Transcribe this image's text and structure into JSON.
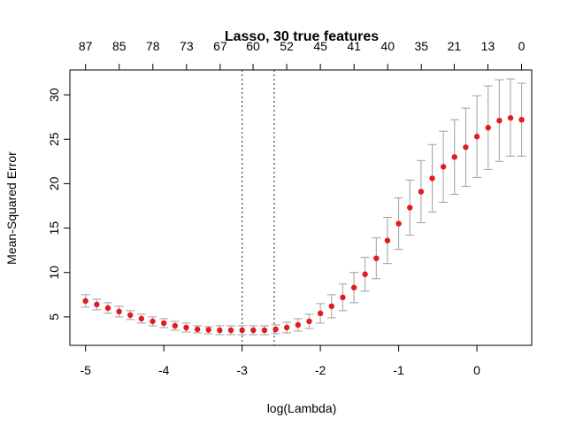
{
  "chart_data": {
    "type": "scatter",
    "title": "Lasso, 30 true features",
    "xlabel": "log(Lambda)",
    "ylabel": "Mean-Squared Error",
    "xlim": [
      -5.2,
      0.7
    ],
    "ylim": [
      1.8,
      32.8
    ],
    "x_ticks": [
      -5,
      -4,
      -3,
      -2,
      -1,
      0
    ],
    "y_ticks": [
      5,
      10,
      15,
      20,
      25,
      30
    ],
    "top_ticks": [
      {
        "x": -5.0,
        "label": "87"
      },
      {
        "x": -4.57,
        "label": "85"
      },
      {
        "x": -4.14,
        "label": "78"
      },
      {
        "x": -3.71,
        "label": "73"
      },
      {
        "x": -3.28,
        "label": "67"
      },
      {
        "x": -2.86,
        "label": "60"
      },
      {
        "x": -2.43,
        "label": "52"
      },
      {
        "x": -2.0,
        "label": "45"
      },
      {
        "x": -1.57,
        "label": "41"
      },
      {
        "x": -1.14,
        "label": "40"
      },
      {
        "x": -0.71,
        "label": "35"
      },
      {
        "x": -0.29,
        "label": "21"
      },
      {
        "x": 0.14,
        "label": "13"
      },
      {
        "x": 0.57,
        "label": "0"
      }
    ],
    "vlines": [
      -3.0,
      -2.59
    ],
    "grid": false,
    "colors": {
      "points": "#e41a1c",
      "errorbars": "#a0a0a0",
      "axes": "#000000",
      "vlines": "#555555"
    },
    "x": [
      -5.0,
      -4.857,
      -4.714,
      -4.571,
      -4.429,
      -4.286,
      -4.143,
      -4.0,
      -3.857,
      -3.714,
      -3.571,
      -3.429,
      -3.286,
      -3.143,
      -3.0,
      -2.857,
      -2.714,
      -2.571,
      -2.429,
      -2.286,
      -2.143,
      -2.0,
      -1.857,
      -1.714,
      -1.571,
      -1.429,
      -1.286,
      -1.143,
      -1.0,
      -0.857,
      -0.714,
      -0.571,
      -0.429,
      -0.286,
      -0.143,
      0.0,
      0.143,
      0.286,
      0.429,
      0.571
    ],
    "mse": [
      6.8,
      6.4,
      6.0,
      5.6,
      5.2,
      4.8,
      4.5,
      4.3,
      4.0,
      3.8,
      3.6,
      3.55,
      3.5,
      3.5,
      3.5,
      3.5,
      3.5,
      3.6,
      3.8,
      4.1,
      4.5,
      5.4,
      6.2,
      7.2,
      8.3,
      9.8,
      11.6,
      13.6,
      15.5,
      17.3,
      19.1,
      20.6,
      21.9,
      23.0,
      24.1,
      25.3,
      26.3,
      27.1,
      27.4,
      27.2
    ],
    "lower": [
      6.1,
      5.8,
      5.4,
      5.0,
      4.7,
      4.3,
      4.0,
      3.8,
      3.5,
      3.3,
      3.2,
      3.1,
      3.0,
      3.0,
      3.0,
      3.0,
      3.0,
      3.1,
      3.2,
      3.4,
      3.7,
      4.3,
      4.9,
      5.7,
      6.6,
      7.9,
      9.3,
      11.0,
      12.6,
      14.2,
      15.6,
      16.8,
      17.9,
      18.8,
      19.7,
      20.7,
      21.6,
      22.5,
      23.1,
      23.1
    ],
    "upper": [
      7.5,
      7.0,
      6.6,
      6.2,
      5.7,
      5.3,
      5.0,
      4.8,
      4.5,
      4.3,
      4.0,
      3.9,
      4.0,
      4.0,
      4.0,
      4.0,
      4.0,
      4.1,
      4.4,
      4.8,
      5.3,
      6.5,
      7.5,
      8.7,
      10.0,
      11.7,
      13.9,
      16.2,
      18.4,
      20.4,
      22.6,
      24.4,
      25.9,
      27.2,
      28.5,
      29.9,
      31.0,
      31.7,
      31.8,
      31.3
    ]
  }
}
